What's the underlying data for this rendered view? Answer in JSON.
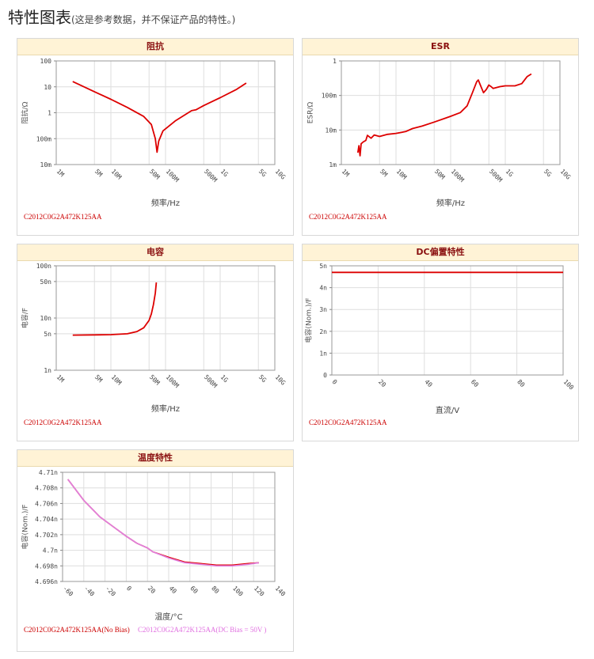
{
  "page": {
    "title": "特性图表",
    "subtitle": "(这是参考数据，并不保证产品的特性。)"
  },
  "panels": {
    "impedance": {
      "header": "阻抗",
      "legend": [
        "C2012C0G2A472K125AA"
      ]
    },
    "esr": {
      "header": "ESR",
      "legend": [
        "C2012C0G2A472K125AA"
      ]
    },
    "capacitance": {
      "header": "电容",
      "legend": [
        "C2012C0G2A472K125AA"
      ]
    },
    "dcbias": {
      "header": "DC偏置特性",
      "legend": [
        "C2012C0G2A472K125AA"
      ]
    },
    "temperature": {
      "header": "温度特性",
      "legend": [
        "C2012C0G2A472K125AA(No Bias)",
        "C2012C0G2A472K125AA(DC Bias = 50V )"
      ]
    }
  },
  "colors": {
    "series1": "#dd0000",
    "series2": "#e080e0",
    "header_bg": "#fff3d6",
    "header_text": "#8a1010"
  },
  "chart_data": [
    {
      "id": "impedance",
      "type": "line",
      "title": "阻抗",
      "xlabel": "频率/Hz",
      "ylabel": "阻抗/Ω",
      "xscale": "log",
      "yscale": "log",
      "xlim": [
        1000000,
        10000000000
      ],
      "ylim": [
        0.01,
        100
      ],
      "xticks": [
        {
          "v": 1000000,
          "t": "1M"
        },
        {
          "v": 5000000,
          "t": "5M"
        },
        {
          "v": 10000000,
          "t": "10M"
        },
        {
          "v": 50000000,
          "t": "50M"
        },
        {
          "v": 100000000,
          "t": "100M"
        },
        {
          "v": 500000000,
          "t": "500M"
        },
        {
          "v": 1000000000,
          "t": "1G"
        },
        {
          "v": 5000000000,
          "t": "5G"
        },
        {
          "v": 10000000000,
          "t": "10G"
        }
      ],
      "yticks": [
        {
          "v": 0.01,
          "t": "10m"
        },
        {
          "v": 0.1,
          "t": "100m"
        },
        {
          "v": 1,
          "t": "1"
        },
        {
          "v": 10,
          "t": "10"
        },
        {
          "v": 100,
          "t": "100"
        }
      ],
      "series": [
        {
          "x": [
            2000000,
            5000000,
            10000000,
            20000000,
            40000000,
            55000000,
            65000000,
            70000000,
            75000000,
            90000000,
            150000000,
            300000000,
            360000000,
            500000000,
            1000000000,
            2000000000,
            3000000000
          ],
          "y": [
            16,
            6.5,
            3.3,
            1.6,
            0.72,
            0.35,
            0.1,
            0.03,
            0.08,
            0.2,
            0.48,
            1.2,
            1.3,
            1.9,
            3.8,
            8,
            14
          ]
        }
      ]
    },
    {
      "id": "esr",
      "type": "line",
      "title": "ESR",
      "xlabel": "频率/Hz",
      "ylabel": "ESR/Ω",
      "xscale": "log",
      "yscale": "log",
      "xlim": [
        1000000,
        10000000000
      ],
      "ylim": [
        0.001,
        1
      ],
      "xticks": [
        {
          "v": 1000000,
          "t": "1M"
        },
        {
          "v": 5000000,
          "t": "5M"
        },
        {
          "v": 10000000,
          "t": "10M"
        },
        {
          "v": 50000000,
          "t": "50M"
        },
        {
          "v": 100000000,
          "t": "100M"
        },
        {
          "v": 500000000,
          "t": "500M"
        },
        {
          "v": 1000000000,
          "t": "1G"
        },
        {
          "v": 5000000000,
          "t": "5G"
        },
        {
          "v": 10000000000,
          "t": "10G"
        }
      ],
      "yticks": [
        {
          "v": 0.001,
          "t": "1m"
        },
        {
          "v": 0.01,
          "t": "10m"
        },
        {
          "v": 0.1,
          "t": "100m"
        },
        {
          "v": 1,
          "t": "1"
        }
      ],
      "series": [
        {
          "x": [
            2000000,
            2100000,
            2200000,
            2300000,
            2500000,
            2800000,
            3000000,
            3500000,
            4000000,
            5000000,
            7000000,
            10000000,
            15000000,
            20000000,
            30000000,
            50000000,
            80000000,
            100000000,
            150000000,
            200000000,
            250000000,
            300000000,
            320000000,
            350000000,
            400000000,
            450000000,
            500000000,
            550000000,
            600000000,
            800000000,
            1000000000,
            1500000000,
            2000000000,
            2500000000,
            3000000000
          ],
          "y": [
            0.0022,
            0.0035,
            0.0018,
            0.004,
            0.0045,
            0.005,
            0.007,
            0.0058,
            0.0072,
            0.0065,
            0.0075,
            0.008,
            0.009,
            0.011,
            0.013,
            0.017,
            0.022,
            0.025,
            0.032,
            0.05,
            0.12,
            0.25,
            0.28,
            0.2,
            0.12,
            0.15,
            0.2,
            0.18,
            0.16,
            0.18,
            0.19,
            0.19,
            0.22,
            0.35,
            0.42
          ]
        }
      ]
    },
    {
      "id": "capacitance",
      "type": "line",
      "title": "电容",
      "xlabel": "频率/Hz",
      "ylabel": "电容/F",
      "xscale": "log",
      "yscale": "log",
      "xlim": [
        1000000,
        10000000000
      ],
      "ylim": [
        1e-09,
        1e-07
      ],
      "xticks": [
        {
          "v": 1000000,
          "t": "1M"
        },
        {
          "v": 5000000,
          "t": "5M"
        },
        {
          "v": 10000000,
          "t": "10M"
        },
        {
          "v": 50000000,
          "t": "50M"
        },
        {
          "v": 100000000,
          "t": "100M"
        },
        {
          "v": 500000000,
          "t": "500M"
        },
        {
          "v": 1000000000,
          "t": "1G"
        },
        {
          "v": 5000000000,
          "t": "5G"
        },
        {
          "v": 10000000000,
          "t": "10G"
        }
      ],
      "yticks": [
        {
          "v": 1e-09,
          "t": "1n"
        },
        {
          "v": 5e-09,
          "t": "5n"
        },
        {
          "v": 1e-08,
          "t": "10n"
        },
        {
          "v": 5e-08,
          "t": "50n"
        },
        {
          "v": 1e-07,
          "t": "100n"
        }
      ],
      "series": [
        {
          "x": [
            2000000,
            5000000,
            10000000,
            20000000,
            30000000,
            40000000,
            50000000,
            55000000,
            60000000,
            65000000,
            68000000
          ],
          "y": [
            4.7e-09,
            4.75e-09,
            4.8e-09,
            5e-09,
            5.5e-09,
            6.5e-09,
            9e-09,
            1.2e-08,
            1.8e-08,
            3e-08,
            4.8e-08
          ]
        }
      ]
    },
    {
      "id": "dcbias",
      "type": "line",
      "title": "DC偏置特性",
      "xlabel": "直流/V",
      "ylabel": "电容(Nom.)/F",
      "xscale": "linear",
      "yscale": "linear",
      "xlim": [
        0,
        100
      ],
      "ylim": [
        0,
        5e-09
      ],
      "xticks": [
        {
          "v": 0,
          "t": "0"
        },
        {
          "v": 20,
          "t": "20"
        },
        {
          "v": 40,
          "t": "40"
        },
        {
          "v": 60,
          "t": "60"
        },
        {
          "v": 80,
          "t": "80"
        },
        {
          "v": 100,
          "t": "100"
        }
      ],
      "yticks": [
        {
          "v": 0,
          "t": "0"
        },
        {
          "v": 1e-09,
          "t": "1n"
        },
        {
          "v": 2e-09,
          "t": "2n"
        },
        {
          "v": 3e-09,
          "t": "3n"
        },
        {
          "v": 4e-09,
          "t": "4n"
        },
        {
          "v": 5e-09,
          "t": "5n"
        }
      ],
      "series": [
        {
          "x": [
            0,
            100
          ],
          "y": [
            4.7e-09,
            4.7e-09
          ]
        }
      ]
    },
    {
      "id": "temperature",
      "type": "line",
      "title": "温度特性",
      "xlabel": "温度/°C",
      "ylabel": "电容(Nom.)/F",
      "xscale": "linear",
      "yscale": "linear",
      "xlim": [
        -60,
        140
      ],
      "ylim": [
        4.696e-09,
        4.71e-09
      ],
      "xticks": [
        {
          "v": -60,
          "t": "-60"
        },
        {
          "v": -40,
          "t": "-40"
        },
        {
          "v": -20,
          "t": "-20"
        },
        {
          "v": 0,
          "t": "0"
        },
        {
          "v": 20,
          "t": "20"
        },
        {
          "v": 40,
          "t": "40"
        },
        {
          "v": 60,
          "t": "60"
        },
        {
          "v": 80,
          "t": "80"
        },
        {
          "v": 100,
          "t": "100"
        },
        {
          "v": 120,
          "t": "120"
        },
        {
          "v": 140,
          "t": "140"
        }
      ],
      "yticks": [
        {
          "v": 4.696e-09,
          "t": "4.696n"
        },
        {
          "v": 4.698e-09,
          "t": "4.698n"
        },
        {
          "v": 4.7e-09,
          "t": "4.7n"
        },
        {
          "v": 4.702e-09,
          "t": "4.702n"
        },
        {
          "v": 4.704e-09,
          "t": "4.704n"
        },
        {
          "v": 4.706e-09,
          "t": "4.706n"
        },
        {
          "v": 4.708e-09,
          "t": "4.708n"
        },
        {
          "v": 4.71e-09,
          "t": "4.71n"
        }
      ],
      "series": [
        {
          "name": "C2012C0G2A472K125AA(No Bias)",
          "x": [
            -55,
            -40,
            -25,
            -10,
            0,
            10,
            20,
            25,
            40,
            55,
            70,
            85,
            100,
            115,
            125
          ],
          "y": [
            4.7091e-09,
            4.7064e-09,
            4.7043e-09,
            4.7028e-09,
            4.7018e-09,
            4.7009e-09,
            4.7003e-09,
            4.6998e-09,
            4.6991e-09,
            4.6985e-09,
            4.6983e-09,
            4.6981e-09,
            4.6981e-09,
            4.6983e-09,
            4.6984e-09
          ]
        },
        {
          "name": "C2012C0G2A472K125AA(DC Bias = 50V )",
          "x": [
            -55,
            -40,
            -25,
            -10,
            0,
            10,
            20,
            25,
            40,
            55,
            70,
            85,
            100,
            115,
            125
          ],
          "y": [
            4.7091e-09,
            4.7064e-09,
            4.7043e-09,
            4.7028e-09,
            4.7018e-09,
            4.7009e-09,
            4.7003e-09,
            4.6998e-09,
            4.699e-09,
            4.6984e-09,
            4.6982e-09,
            4.698e-09,
            4.698e-09,
            4.6982e-09,
            4.6984e-09
          ]
        }
      ]
    }
  ]
}
